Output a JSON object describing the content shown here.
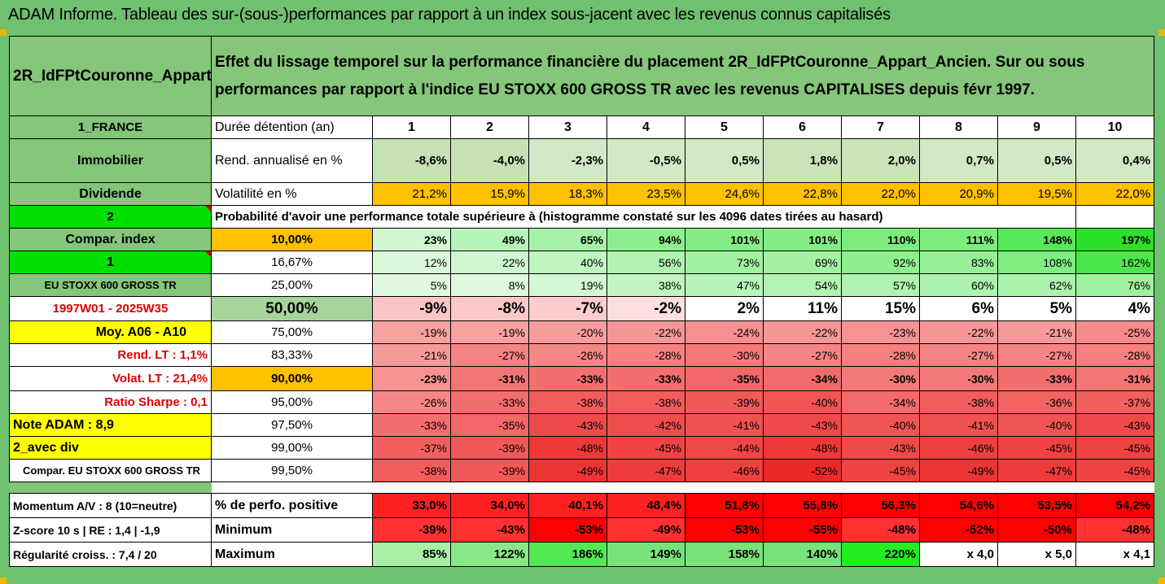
{
  "title": "ADAM Informe. Tableau des sur-(sous-)performances par rapport à un index sous-jacent avec les revenus connus capitalisés",
  "header": {
    "fund_name": "2R_IdFPtCouronne_Appart_Ancien",
    "description": "Effet du lissage temporel sur la performance financière du placement 2R_IdFPtCouronne_Appart_Ancien. Sur ou sous performances par rapport à l'indice EU STOXX 600 GROSS TR avec les revenus CAPITALISES depuis févr 1997."
  },
  "left_labels": {
    "country": "1_FRANCE",
    "asset": "Immobilier",
    "dividend": "Dividende",
    "num2": "2",
    "compar_index": "Compar. index",
    "num1": "1",
    "index_name": "EU STOXX 600 GROSS TR",
    "period": "1997W01 - 2025W35",
    "moy": "Moy. A06 - A10",
    "rend_lt": "Rend. LT :    1,1%",
    "volat_lt": "Volat. LT :   21,4%",
    "sharpe": "Ratio Sharpe :    0,1",
    "note": "Note ADAM : 8,9",
    "avec_div": "2_avec div",
    "compar_full": "Compar. EU STOXX 600 GROSS TR",
    "momentum": "Momentum A/V : 8 (10=neutre)",
    "zscore": "Z-score 10 s  | RE : 1,4  | -1,9",
    "regularite": "Régularité croiss. : 7,4 / 20"
  },
  "row_labels": {
    "duree": "Durée détention (an)",
    "rend": "Rend. annualisé en %",
    "volat": "Volatilité en %",
    "proba": "Probabilité d'avoir une performance totale supérieure à (histogramme constaté sur les 4096 dates tirées au hasard)",
    "perfo_pos": "% de perfo. positive",
    "minimum": "Minimum",
    "maximum": "Maximum"
  },
  "years": [
    "1",
    "2",
    "3",
    "4",
    "5",
    "6",
    "7",
    "8",
    "9",
    "10"
  ],
  "rend": [
    "-8,6%",
    "-4,0%",
    "-2,3%",
    "-0,5%",
    "0,5%",
    "1,8%",
    "2,0%",
    "0,7%",
    "0,5%",
    "0,4%"
  ],
  "volat": [
    "21,2%",
    "15,9%",
    "18,3%",
    "23,5%",
    "24,6%",
    "22,8%",
    "22,0%",
    "20,9%",
    "19,5%",
    "22,0%"
  ],
  "percentile_rows": [
    {
      "pct": "10,00%",
      "values": [
        "23%",
        "49%",
        "65%",
        "94%",
        "101%",
        "101%",
        "110%",
        "111%",
        "148%",
        "197%"
      ]
    },
    {
      "pct": "16,67%",
      "values": [
        "12%",
        "22%",
        "40%",
        "56%",
        "73%",
        "69%",
        "92%",
        "83%",
        "108%",
        "162%"
      ]
    },
    {
      "pct": "25,00%",
      "values": [
        "5%",
        "8%",
        "19%",
        "38%",
        "47%",
        "54%",
        "57%",
        "60%",
        "62%",
        "76%"
      ]
    },
    {
      "pct": "50,00%",
      "values": [
        "-9%",
        "-8%",
        "-7%",
        "-2%",
        "2%",
        "11%",
        "15%",
        "6%",
        "5%",
        "4%"
      ]
    },
    {
      "pct": "75,00%",
      "values": [
        "-19%",
        "-19%",
        "-20%",
        "-22%",
        "-24%",
        "-22%",
        "-23%",
        "-22%",
        "-21%",
        "-25%"
      ]
    },
    {
      "pct": "83,33%",
      "values": [
        "-21%",
        "-27%",
        "-26%",
        "-28%",
        "-30%",
        "-27%",
        "-28%",
        "-27%",
        "-27%",
        "-28%"
      ]
    },
    {
      "pct": "90,00%",
      "values": [
        "-23%",
        "-31%",
        "-33%",
        "-33%",
        "-35%",
        "-34%",
        "-30%",
        "-30%",
        "-33%",
        "-31%"
      ]
    },
    {
      "pct": "95,00%",
      "values": [
        "-26%",
        "-33%",
        "-38%",
        "-38%",
        "-39%",
        "-40%",
        "-34%",
        "-38%",
        "-36%",
        "-37%"
      ]
    },
    {
      "pct": "97,50%",
      "values": [
        "-33%",
        "-35%",
        "-43%",
        "-42%",
        "-41%",
        "-43%",
        "-40%",
        "-41%",
        "-40%",
        "-43%"
      ]
    },
    {
      "pct": "99,00%",
      "values": [
        "-37%",
        "-39%",
        "-48%",
        "-45%",
        "-44%",
        "-48%",
        "-43%",
        "-46%",
        "-45%",
        "-45%"
      ]
    },
    {
      "pct": "99,50%",
      "values": [
        "-38%",
        "-39%",
        "-49%",
        "-47%",
        "-46%",
        "-52%",
        "-45%",
        "-49%",
        "-47%",
        "-45%"
      ]
    }
  ],
  "perfo_pos": [
    "33,0%",
    "34,0%",
    "40,1%",
    "48,4%",
    "51,8%",
    "55,8%",
    "56,3%",
    "54,6%",
    "53,5%",
    "54,2%"
  ],
  "minimum": [
    "-39%",
    "-43%",
    "-53%",
    "-49%",
    "-53%",
    "-55%",
    "-48%",
    "-52%",
    "-50%",
    "-48%"
  ],
  "maximum": [
    "85%",
    "122%",
    "186%",
    "149%",
    "158%",
    "140%",
    "220%",
    "x 4,0",
    "x 5,0",
    "x 4,1"
  ],
  "colors": {
    "header_green": "#70c070",
    "bright_green": "#00e000",
    "yellow": "#ffff00",
    "orange": "#ffc000",
    "red_text": "#e00000"
  }
}
